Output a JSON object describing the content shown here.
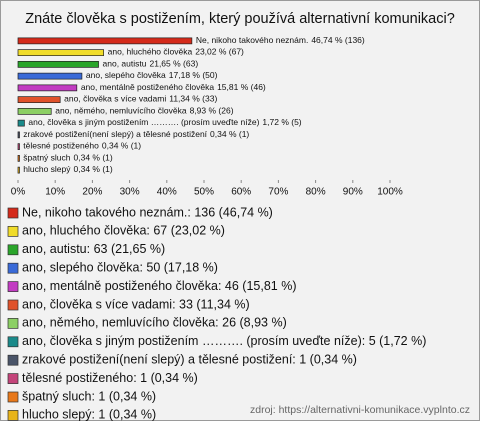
{
  "chart_data": {
    "type": "bar",
    "orientation": "horizontal",
    "title": "Znáte člověka s postižením, který používá alternativní komunikaci?",
    "categories": [
      "Ne, nikoho takového neznám.",
      "ano, hluchého člověka",
      "ano, autistu",
      "ano, slepého člověka",
      "ano, mentálně postiženého člověka",
      "ano, člověka s více vadami",
      "ano, němého, nemluvícího člověka",
      "ano, člověka s jiným postižením ………. (prosím uveďte níže)",
      "zrakové postižení(není slepý) a tělesné postižení",
      "tělesné postiženého",
      "špatný sluch",
      "hlucho slepý"
    ],
    "values": [
      46.74,
      23.02,
      21.65,
      17.18,
      15.81,
      11.34,
      8.93,
      1.72,
      0.34,
      0.34,
      0.34,
      0.34
    ],
    "value_labels": [
      "46,74 % (136)",
      "23,02 % (67)",
      "21,65 % (63)",
      "17,18 % (50)",
      "15,81 % (46)",
      "11,34 % (33)",
      "8,93 % (26)",
      "1,72 % (5)",
      "0,34 % (1)",
      "0,34 % (1)",
      "0,34 % (1)",
      "0,34 % (1)"
    ],
    "colors": [
      "#d42a1a",
      "#f0dc2a",
      "#2aa52a",
      "#3a6ad8",
      "#c23cc2",
      "#e0522a",
      "#8ccf64",
      "#1a8a8a",
      "#4a5468",
      "#c4447a",
      "#e8781a",
      "#e8b41a"
    ],
    "xlim": [
      0,
      100
    ],
    "xticks": [
      {
        "value": 0,
        "label": "0%"
      },
      {
        "value": 10,
        "label": "10%"
      },
      {
        "value": 20,
        "label": "20%"
      },
      {
        "value": 30,
        "label": "30%"
      },
      {
        "value": 40,
        "label": "40%"
      },
      {
        "value": 50,
        "label": "50%"
      },
      {
        "value": 60,
        "label": "60%"
      },
      {
        "value": 70,
        "label": "70%"
      },
      {
        "value": 80,
        "label": "80%"
      },
      {
        "value": 90,
        "label": "90%"
      },
      {
        "value": 100,
        "label": "100%"
      }
    ],
    "legend_labels": [
      "Ne, nikoho takového neznám.: 136 (46,74 %)",
      "ano, hluchého člověka: 67 (23,02 %)",
      "ano, autistu: 63 (21,65 %)",
      "ano, slepého člověka: 50 (17,18 %)",
      "ano, mentálně postiženého člověka: 46 (15,81 %)",
      "ano, člověka s více vadami: 33 (11,34 %)",
      "ano, němého, nemluvícího člověka: 26 (8,93 %)",
      "ano, člověka s jiným postižením ………. (prosím uveďte níže): 5 (1,72 %)",
      "zrakové postižení(není slepý) a tělesné postižení: 1 (0,34 %)",
      "tělesné postiženého: 1 (0,34 %)",
      "špatný sluch: 1 (0,34 %)",
      "hlucho slepý: 1 (0,34 %)"
    ],
    "source": "zdroj: https://alternativni-komunikace.vyplnto.cz"
  }
}
